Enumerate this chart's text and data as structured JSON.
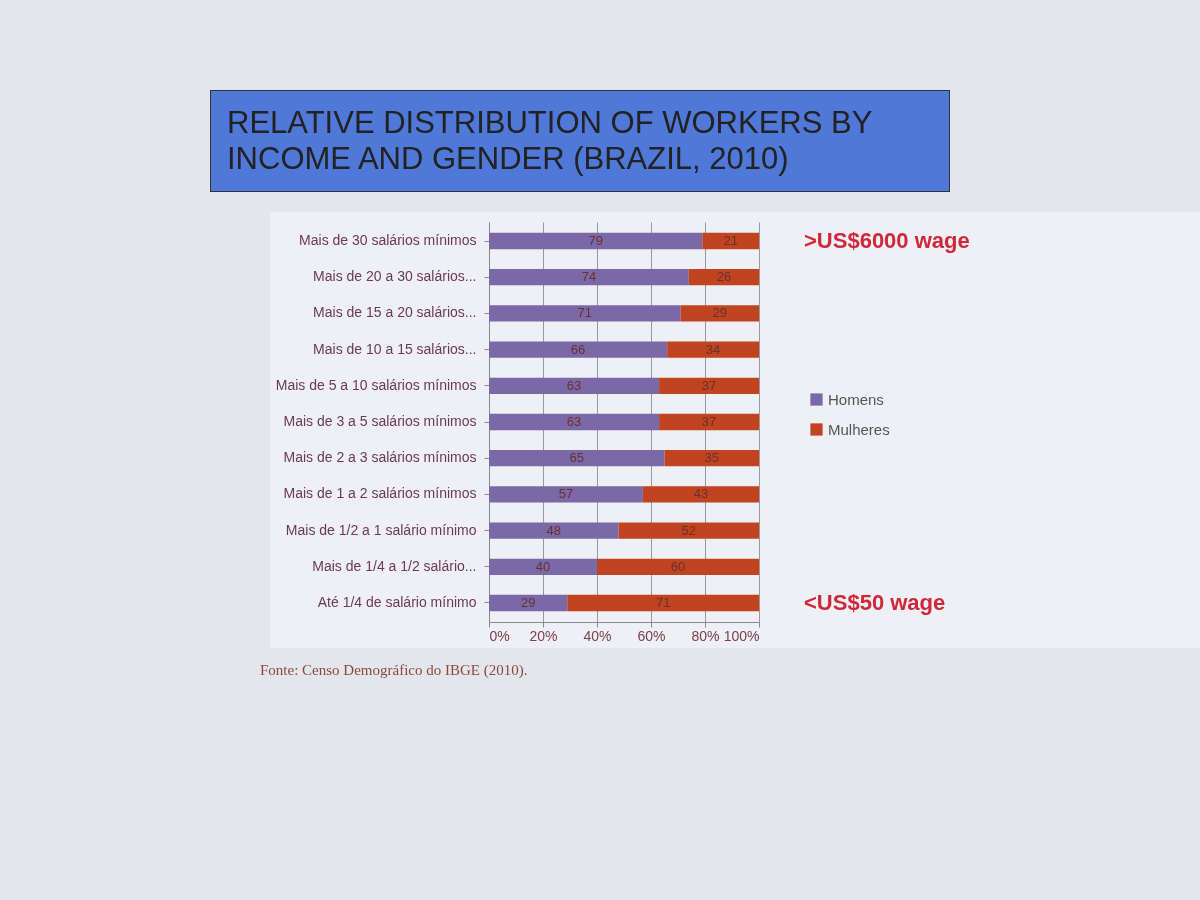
{
  "chart_data": {
    "type": "bar",
    "orientation": "horizontal",
    "stacked": true,
    "title": "RELATIVE DISTRIBUTION OF WORKERS BY INCOME AND GENDER (BRAZIL, 2010)",
    "categories": [
      "Mais de 30 salários mínimos",
      "Mais de 20 a 30 salários...",
      "Mais de 15 a 20 salários...",
      "Mais de 10 a 15 salários...",
      "Mais de 5 a 10 salários mínimos",
      "Mais de 3 a 5 salários mínimos",
      "Mais de 2 a 3 salários mínimos",
      "Mais de 1 a 2 salários mínimos",
      "Mais de 1/2 a 1 salário mínimo",
      "Mais de 1/4 a 1/2 salário...",
      "Até 1/4 de salário mínimo"
    ],
    "series": [
      {
        "name": "Homens",
        "color": "#7b68a6",
        "values": [
          79,
          74,
          71,
          66,
          63,
          63,
          65,
          57,
          48,
          40,
          29
        ]
      },
      {
        "name": "Mulheres",
        "color": "#c0441f",
        "values": [
          21,
          26,
          29,
          34,
          37,
          37,
          35,
          43,
          52,
          60,
          71
        ]
      }
    ],
    "xlim": [
      0,
      100
    ],
    "xticks": [
      {
        "value": 0,
        "label": "0%"
      },
      {
        "value": 20,
        "label": "20%"
      },
      {
        "value": 40,
        "label": "40%"
      },
      {
        "value": 60,
        "label": "60%"
      },
      {
        "value": 80,
        "label": "80%"
      },
      {
        "value": 100,
        "label": "100%"
      }
    ],
    "grid": "x",
    "legend": "right",
    "data_labels": true,
    "annotations": [
      {
        "text": ">US$6000 wage",
        "x": 100,
        "y": "Mais de 30 salários mínimos"
      },
      {
        "text": "<US$50 wage",
        "x": 100,
        "y": "Até 1/4 de salário mínimo"
      },
      "Fonte: Censo Demográfico do IBGE (2010)."
    ]
  }
}
